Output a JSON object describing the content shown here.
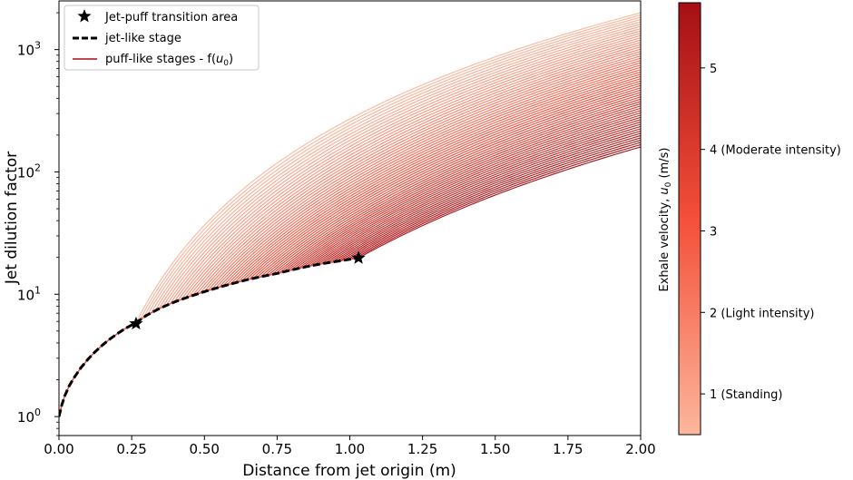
{
  "chart_data": {
    "type": "line",
    "x_scale": "linear",
    "y_scale": "log",
    "xlabel": "Distance from jet origin (m)",
    "ylabel": "Jet dilution factor",
    "xlim": [
      0.0,
      2.0
    ],
    "ylim": [
      0.7,
      2500
    ],
    "x_ticks": [
      0.0,
      0.25,
      0.5,
      0.75,
      1.0,
      1.25,
      1.5,
      1.75,
      2.0
    ],
    "x_tick_labels": [
      "0.00",
      "0.25",
      "0.50",
      "0.75",
      "1.00",
      "1.25",
      "1.50",
      "1.75",
      "2.00"
    ],
    "y_ticks": [
      1,
      10,
      100,
      1000
    ],
    "y_tick_bases": [
      "10",
      "10",
      "10",
      "10"
    ],
    "y_tick_exponents": [
      "0",
      "1",
      "2",
      "3"
    ],
    "legend": {
      "position": "upper-left",
      "entries": [
        {
          "text": "Jet-puff transition area",
          "symbol": "star"
        },
        {
          "text": "jet-like stage",
          "symbol": "dashed-line"
        },
        {
          "text": "puff-like stages - f(",
          "math": "u",
          "sub": "0",
          "close": ")",
          "symbol": "red-line"
        }
      ]
    },
    "jet_stage": {
      "x": [
        0.0,
        0.005,
        0.01,
        0.02,
        0.035,
        0.05,
        0.075,
        0.1,
        0.125,
        0.15,
        0.175,
        0.2,
        0.225,
        0.25,
        0.26,
        0.3,
        0.35,
        0.4,
        0.45,
        0.5,
        0.55,
        0.6,
        0.65,
        0.7,
        0.75,
        0.8,
        0.85,
        0.9,
        0.95,
        1.0,
        1.03
      ],
      "y": [
        1.0,
        1.12,
        1.25,
        1.48,
        1.78,
        2.05,
        2.5,
        2.95,
        3.4,
        3.85,
        4.3,
        4.75,
        5.2,
        5.6,
        5.75,
        6.7,
        7.75,
        8.7,
        9.6,
        10.5,
        11.4,
        12.3,
        13.2,
        14.0,
        14.8,
        15.8,
        16.8,
        17.7,
        18.5,
        19.3,
        19.8
      ]
    },
    "transition_points": [
      {
        "x": 0.265,
        "y": 5.75
      },
      {
        "x": 1.03,
        "y": 19.8
      }
    ],
    "puff_stages": {
      "description_values": "u0 from ~0.5 to ~5.8 m/s; puff curves start on the jet curve at the transition distance and follow y = y0*(x/x0)^p",
      "u0_min": 0.5,
      "u0_max": 5.8,
      "curve_count": 60,
      "start_x_range": [
        0.265,
        1.03
      ],
      "end_y_at_2m": [
        2000,
        160
      ]
    },
    "colorbar": {
      "label_prefix": "Exhale velocity, ",
      "label_math": "u",
      "label_sub": "0",
      "label_suffix": " (m/s)",
      "range": [
        0.5,
        5.8
      ],
      "ticks": [
        {
          "value": 1,
          "label": "1 (Standing)"
        },
        {
          "value": 2,
          "label": "2 (Light intensity)"
        },
        {
          "value": 3,
          "label": "3"
        },
        {
          "value": 4,
          "label": "4 (Moderate intensity)"
        },
        {
          "value": 5,
          "label": "5"
        }
      ],
      "color_low": "#fcb79c",
      "color_high": "#a50f15"
    }
  }
}
